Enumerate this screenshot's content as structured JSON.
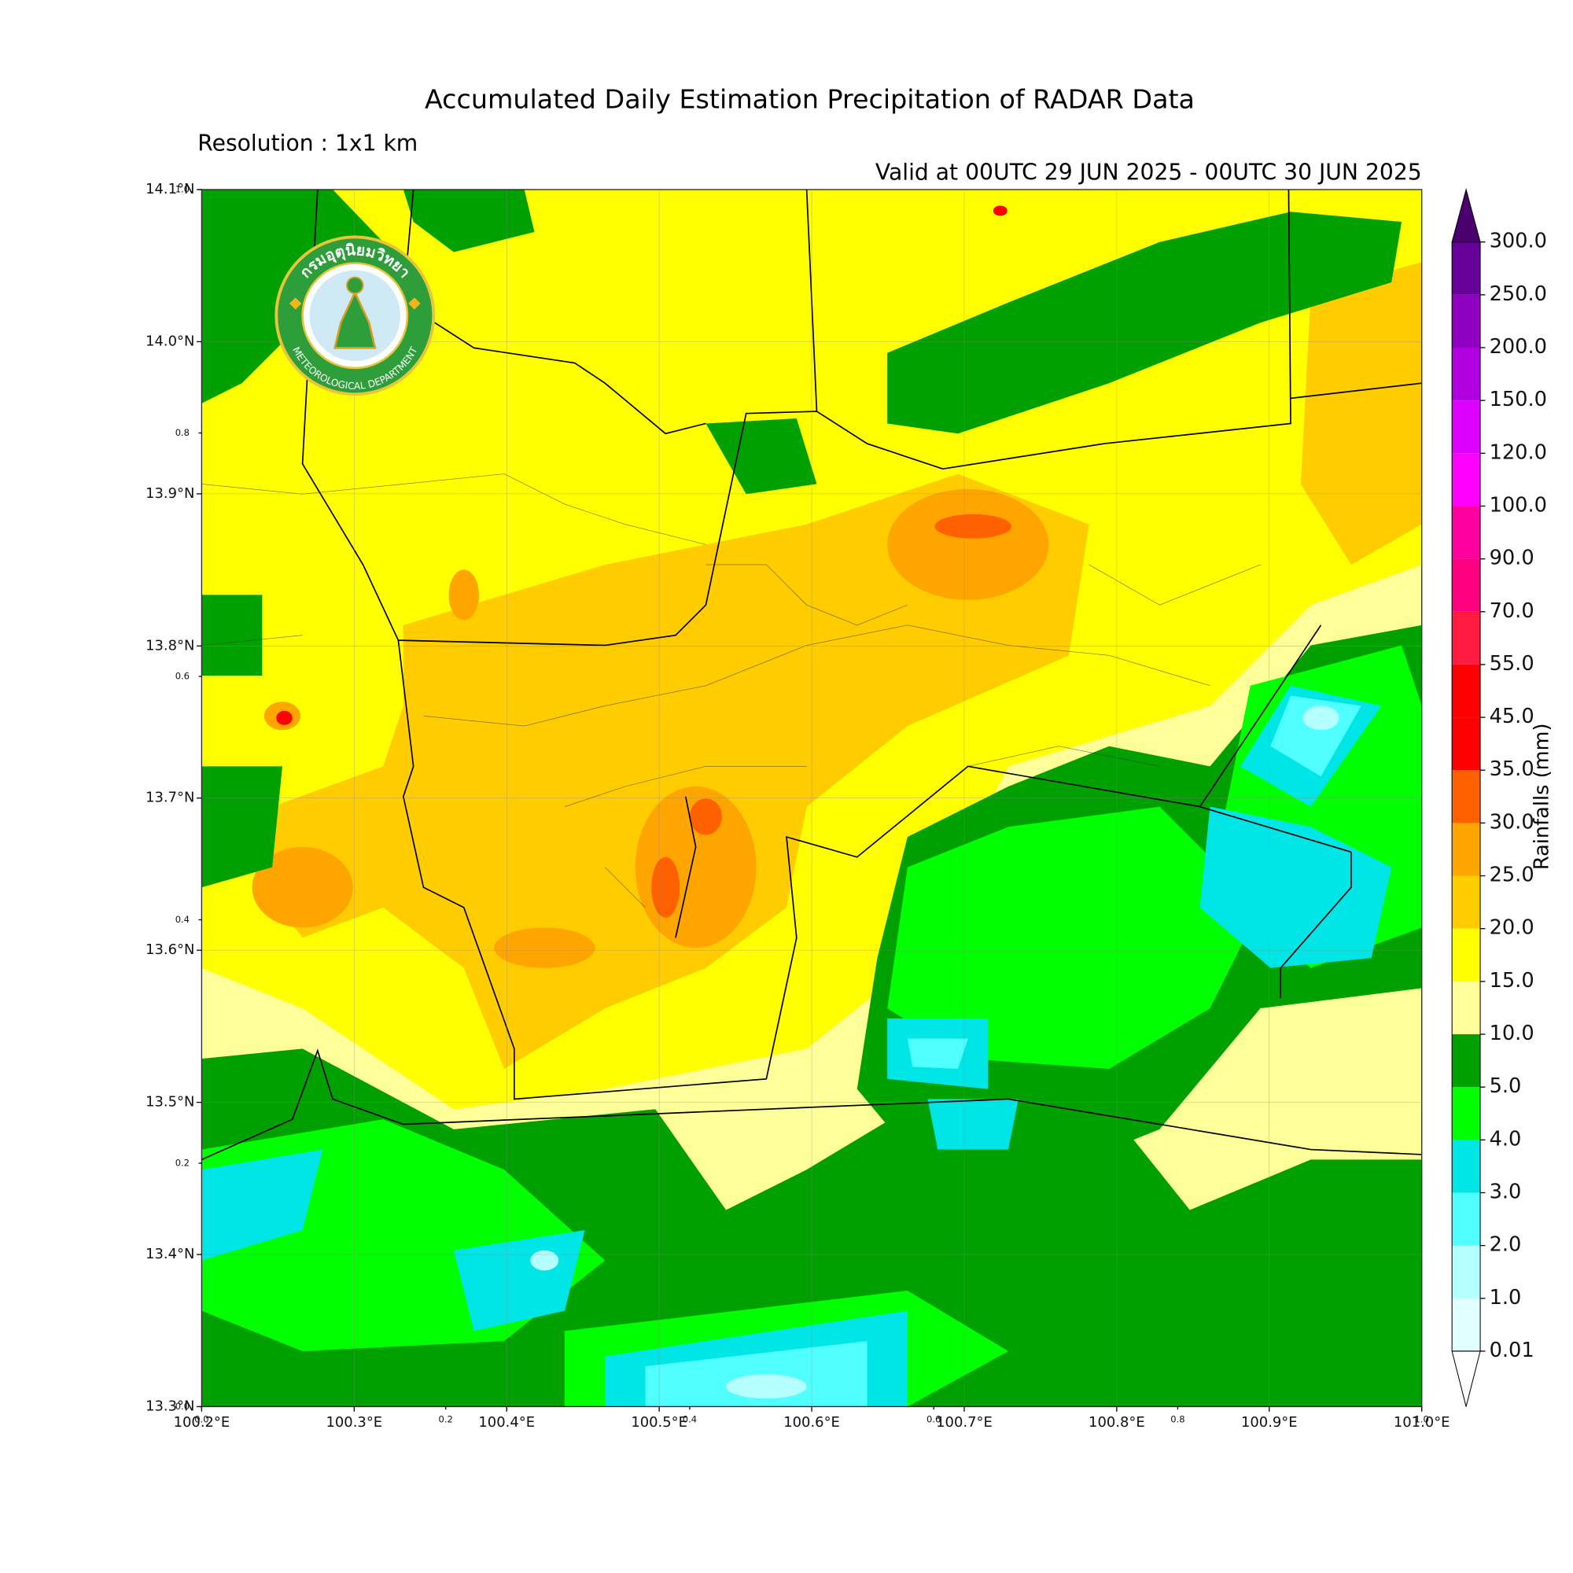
{
  "title": "Accumulated Daily Estimation Precipitation of RADAR Data",
  "subtitle": "Resolution : 1x1 km",
  "valid": "Valid at 00UTC 29 JUN 2025 - 00UTC 30 JUN 2025",
  "logo": {
    "thai": "กรมอุตุนิยมวิทยา",
    "english": "METEOROLOGICAL DEPARTMENT"
  },
  "map": {
    "xlim": [
      100.2,
      101.0
    ],
    "ylim": [
      13.3,
      14.1
    ],
    "grid": true,
    "xticks": [
      {
        "value": 100.2,
        "label": "100.2°E"
      },
      {
        "value": 100.3,
        "label": "100.3°E"
      },
      {
        "value": 100.4,
        "label": "100.4°E"
      },
      {
        "value": 100.5,
        "label": "100.5°E"
      },
      {
        "value": 100.6,
        "label": "100.6°E"
      },
      {
        "value": 100.7,
        "label": "100.7°E"
      },
      {
        "value": 100.8,
        "label": "100.8°E"
      },
      {
        "value": 100.9,
        "label": "100.9°E"
      },
      {
        "value": 101.0,
        "label": "101.0°E"
      }
    ],
    "yticks": [
      {
        "value": 13.3,
        "label": "13.3°N"
      },
      {
        "value": 13.4,
        "label": "13.4°N"
      },
      {
        "value": 13.5,
        "label": "13.5°N"
      },
      {
        "value": 13.6,
        "label": "13.6°N"
      },
      {
        "value": 13.7,
        "label": "13.7°N"
      },
      {
        "value": 13.8,
        "label": "13.8°N"
      },
      {
        "value": 13.9,
        "label": "13.9°N"
      },
      {
        "value": 14.0,
        "label": "14.0°N"
      },
      {
        "value": 14.1,
        "label": "14.1°N"
      }
    ],
    "x2lim": [
      0,
      1
    ],
    "x2ticks": [
      {
        "value": 0,
        "label": "0.0"
      },
      0.2,
      0.4,
      0.6,
      0.8,
      {
        "value": 1,
        "label": "1.0"
      }
    ],
    "y2lim": [
      0,
      1
    ],
    "y2ticks": [
      {
        "value": 0,
        "label": "0.0"
      },
      0.2,
      0.4,
      0.6,
      0.8,
      {
        "value": 1,
        "label": "1.0"
      }
    ]
  },
  "colorbar": {
    "label": "Rainfalls (mm)",
    "levels": [
      0.01,
      {
        "value": 1,
        "label": "1.0"
      },
      {
        "value": 2,
        "label": "2.0"
      },
      {
        "value": 3,
        "label": "3.0"
      },
      {
        "value": 4,
        "label": "4.0"
      },
      {
        "value": 5,
        "label": "5.0"
      },
      {
        "value": 10,
        "label": "10.0"
      },
      {
        "value": 15,
        "label": "15.0"
      },
      {
        "value": 20,
        "label": "20.0"
      },
      {
        "value": 25,
        "label": "25.0"
      },
      {
        "value": 30,
        "label": "30.0"
      },
      {
        "value": 35,
        "label": "35.0"
      },
      {
        "value": 45,
        "label": "45.0"
      },
      {
        "value": 55,
        "label": "55.0"
      },
      {
        "value": 70,
        "label": "70.0"
      },
      {
        "value": 90,
        "label": "90.0"
      },
      {
        "value": 100,
        "label": "100.0"
      },
      {
        "value": 120,
        "label": "120.0"
      },
      {
        "value": 150,
        "label": "150.0"
      },
      {
        "value": 200,
        "label": "200.0"
      },
      {
        "value": 250,
        "label": "250.0"
      },
      {
        "value": 300,
        "label": "300.0"
      }
    ],
    "colors": [
      "#e1ffff",
      "#b4ffff",
      "#50ffff",
      "#00e6e6",
      "#00ff00",
      "#00a000",
      "#ffff99",
      "#ffff00",
      "#ffcc00",
      "#ffa500",
      "#ff6000",
      "#ff0000",
      "#ff0000",
      "#ff1a40",
      "#ff0080",
      "#ff00a0",
      "#ff00ff",
      "#dd00ff",
      "#b000e0",
      "#9000c0",
      "#660099"
    ],
    "extend_color": "#4b0070"
  }
}
